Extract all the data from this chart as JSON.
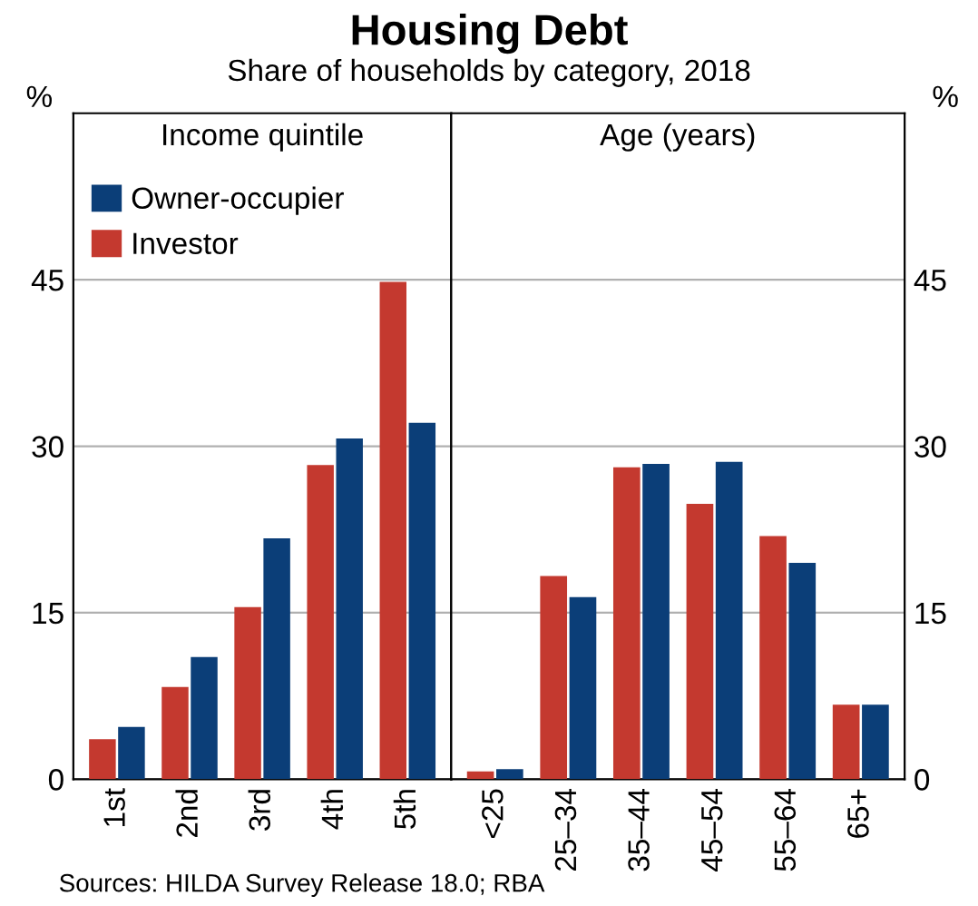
{
  "chart_data": [
    {
      "type": "bar",
      "title": "Housing Debt",
      "subtitle": "Share of households by category, 2018",
      "ylabel": "%",
      "annotations": [
        "Income quintile",
        "Sources: HILDA Survey Release 18.0; RBA"
      ],
      "categories": [
        "1st",
        "2nd",
        "3rd",
        "4th",
        "5th"
      ],
      "series": [
        {
          "name": "Investor",
          "color": "#c4392f",
          "values": [
            3.6,
            8.3,
            15.5,
            28.3,
            44.8
          ]
        },
        {
          "name": "Owner-occupier",
          "color": "#0b3e78",
          "values": [
            4.7,
            11.0,
            21.7,
            30.7,
            32.1
          ]
        }
      ],
      "ylim": [
        0,
        60
      ],
      "yticks": [
        0,
        15,
        30,
        45
      ],
      "grid": "y",
      "legend": "top left"
    },
    {
      "type": "bar",
      "ylabel": "%",
      "annotations": [
        "Age (years)"
      ],
      "categories": [
        "<25",
        "25–34",
        "35–44",
        "45–54",
        "55–64",
        "65+"
      ],
      "series": [
        {
          "color": "#c4392f",
          "values": [
            0.7,
            18.3,
            28.1,
            24.8,
            21.9,
            6.7
          ]
        },
        {
          "color": "#0b3e78",
          "values": [
            0.9,
            16.4,
            28.4,
            28.6,
            19.5,
            6.7
          ]
        }
      ],
      "ylim": [
        0,
        60
      ],
      "yticks": [
        0,
        15,
        30,
        45
      ],
      "grid": "y"
    }
  ]
}
